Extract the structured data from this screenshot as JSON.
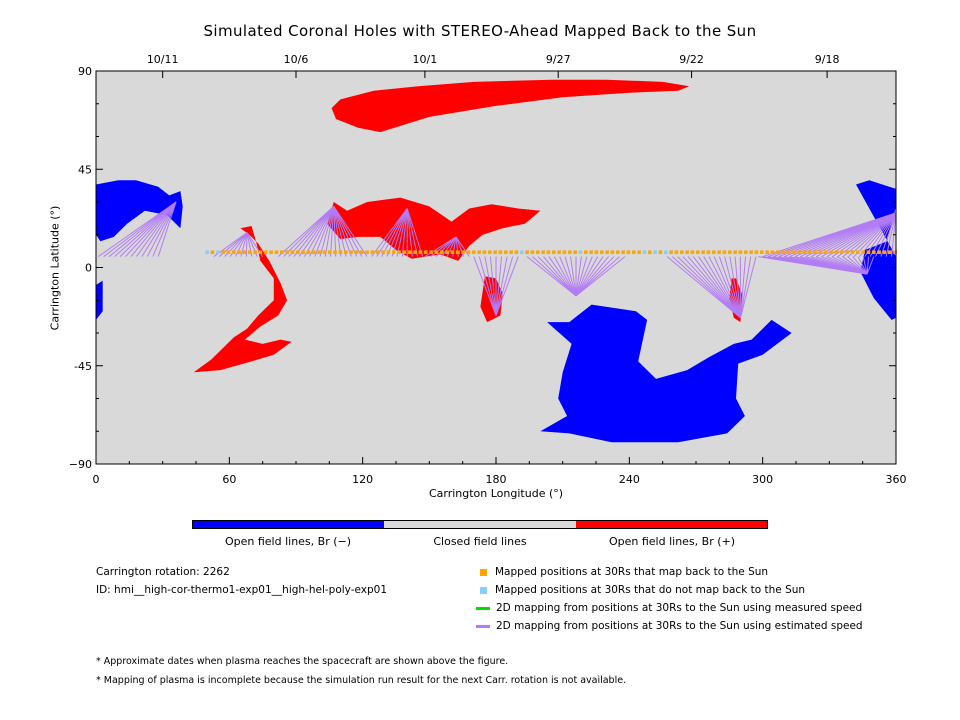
{
  "title": "Simulated Coronal Holes with STEREO-Ahead Mapped Back to the Sun",
  "colors": {
    "background": "#d9d9d9",
    "negative": "#0000ff",
    "positive": "#ff0000",
    "mapped": "#ffa500",
    "not_mapped": "#87cefa",
    "measured": "#00dd00",
    "estimated": "#b27cf5"
  },
  "colorbar": {
    "labels": [
      "Open field lines, Br (−)",
      "Closed field lines",
      "Open field lines, Br (+)"
    ]
  },
  "info": {
    "rotation": "Carrington rotation: 2262",
    "id": "ID: hmi__high-cor-thermo1-exp01__high-hel-poly-exp01"
  },
  "legend": {
    "mapped": "Mapped positions at 30Rs that map back to the Sun",
    "not_mapped": "Mapped positions at 30Rs that do not map back to the Sun",
    "measured": "2D mapping from positions at 30Rs to the Sun using measured speed",
    "estimated": "2D mapping from positions at 30Rs to the Sun using estimated speed"
  },
  "notes": [
    "* Approximate dates when plasma reaches the spacecraft are shown above the figure.",
    "* Mapping of plasma is incomplete because the simulation run result for the next Carr. rotation is not available."
  ],
  "chart_data": {
    "type": "scatter",
    "xlabel": "Carrington Longitude (°)",
    "ylabel": "Carrington Latitude (°)",
    "xlim": [
      0,
      360
    ],
    "ylim": [
      -90,
      90
    ],
    "x_ticks": [
      0,
      60,
      120,
      180,
      240,
      300,
      360
    ],
    "y_ticks": [
      90,
      45,
      0,
      -45,
      -90
    ],
    "y_tick_labels": [
      "90",
      "45",
      "0",
      "-45",
      "−90"
    ],
    "top_axis": {
      "dates": [
        {
          "label": "10/11",
          "lon": 30
        },
        {
          "label": "10/6",
          "lon": 90
        },
        {
          "label": "10/1",
          "lon": 148
        },
        {
          "label": "9/27",
          "lon": 208
        },
        {
          "label": "9/22",
          "lon": 268
        },
        {
          "label": "9/18",
          "lon": 329
        }
      ]
    },
    "coronal_holes": [
      {
        "polarity": "positive",
        "points": [
          [
            110,
            77
          ],
          [
            125,
            81
          ],
          [
            145,
            83
          ],
          [
            170,
            85
          ],
          [
            205,
            86
          ],
          [
            230,
            86
          ],
          [
            255,
            85
          ],
          [
            267,
            83
          ],
          [
            262,
            81
          ],
          [
            240,
            80
          ],
          [
            210,
            78
          ],
          [
            180,
            74
          ],
          [
            150,
            69
          ],
          [
            128,
            62
          ],
          [
            118,
            64
          ],
          [
            108,
            68
          ],
          [
            106,
            73
          ]
        ]
      },
      {
        "polarity": "positive",
        "points": [
          [
            104,
            20
          ],
          [
            107,
            30
          ],
          [
            113,
            26
          ],
          [
            122,
            30
          ],
          [
            137,
            32
          ],
          [
            150,
            28
          ],
          [
            160,
            21
          ],
          [
            168,
            27
          ],
          [
            178,
            29
          ],
          [
            190,
            27
          ],
          [
            200,
            26
          ],
          [
            193,
            20
          ],
          [
            183,
            18
          ],
          [
            174,
            15
          ],
          [
            168,
            10
          ],
          [
            163,
            3
          ],
          [
            155,
            6
          ],
          [
            142,
            4
          ],
          [
            135,
            8
          ],
          [
            128,
            14
          ],
          [
            118,
            14
          ],
          [
            110,
            13
          ]
        ]
      },
      {
        "polarity": "positive",
        "points": [
          [
            175,
            -4
          ],
          [
            180,
            -5
          ],
          [
            183,
            -12
          ],
          [
            182,
            -22
          ],
          [
            176,
            -25
          ],
          [
            173,
            -18
          ]
        ]
      },
      {
        "polarity": "positive",
        "points": [
          [
            65,
            18
          ],
          [
            70,
            19
          ],
          [
            72,
            12
          ],
          [
            74,
            3
          ],
          [
            80,
            -5
          ],
          [
            80,
            -15
          ],
          [
            73,
            -22
          ],
          [
            68,
            -28
          ],
          [
            62,
            -32
          ],
          [
            58,
            -36
          ],
          [
            52,
            -42
          ],
          [
            44,
            -48
          ],
          [
            56,
            -47
          ],
          [
            70,
            -43
          ],
          [
            80,
            -40
          ],
          [
            88,
            -34
          ],
          [
            83,
            -33
          ],
          [
            75,
            -35
          ],
          [
            67,
            -33
          ],
          [
            74,
            -27
          ],
          [
            82,
            -22
          ],
          [
            86,
            -15
          ],
          [
            83,
            -7
          ],
          [
            78,
            3
          ],
          [
            73,
            11
          ],
          [
            69,
            15
          ]
        ]
      },
      {
        "polarity": "positive",
        "points": [
          [
            286,
            -5
          ],
          [
            288,
            -5
          ],
          [
            291,
            -13
          ],
          [
            290,
            -25
          ],
          [
            287,
            -23
          ],
          [
            285,
            -14
          ]
        ]
      },
      {
        "polarity": "negative",
        "points": [
          [
            0,
            38
          ],
          [
            10,
            40
          ],
          [
            18,
            40
          ],
          [
            28,
            37
          ],
          [
            33,
            33
          ],
          [
            38,
            35
          ],
          [
            39,
            28
          ],
          [
            38,
            18
          ],
          [
            32,
            24
          ],
          [
            22,
            26
          ],
          [
            14,
            20
          ],
          [
            8,
            14
          ],
          [
            2,
            12
          ],
          [
            0,
            15
          ]
        ]
      },
      {
        "polarity": "negative",
        "points": [
          [
            0,
            -8
          ],
          [
            3,
            -6
          ],
          [
            3,
            -20
          ],
          [
            0,
            -24
          ]
        ]
      },
      {
        "polarity": "negative",
        "points": [
          [
            203,
            -25
          ],
          [
            213,
            -25
          ],
          [
            223,
            -17
          ],
          [
            243,
            -20
          ],
          [
            248,
            -24
          ],
          [
            244,
            -43
          ],
          [
            252,
            -51
          ],
          [
            266,
            -47
          ],
          [
            276,
            -41
          ],
          [
            287,
            -35
          ],
          [
            295,
            -33
          ],
          [
            304,
            -24
          ],
          [
            313,
            -30
          ],
          [
            300,
            -40
          ],
          [
            289,
            -44
          ],
          [
            288,
            -60
          ],
          [
            292,
            -68
          ],
          [
            284,
            -76
          ],
          [
            262,
            -80
          ],
          [
            232,
            -80
          ],
          [
            213,
            -76
          ],
          [
            200,
            -75
          ],
          [
            212,
            -68
          ],
          [
            208,
            -60
          ],
          [
            210,
            -48
          ],
          [
            214,
            -35
          ]
        ]
      },
      {
        "polarity": "negative",
        "points": [
          [
            342,
            38
          ],
          [
            348,
            40
          ],
          [
            360,
            36
          ],
          [
            360,
            28
          ],
          [
            356,
            12
          ],
          [
            346,
            8
          ],
          [
            344,
            -2
          ],
          [
            350,
            -14
          ],
          [
            358,
            -24
          ],
          [
            360,
            -23
          ],
          [
            360,
            5
          ]
        ]
      }
    ],
    "field_lines": [
      {
        "speed": "estimated",
        "from_lon": [
          1,
          28
        ],
        "from_lat": 5,
        "to": [
          36,
          30
        ]
      },
      {
        "speed": "estimated",
        "from_lon": [
          53,
          75
        ],
        "from_lat": 5,
        "to": [
          68,
          16
        ]
      },
      {
        "speed": "estimated",
        "from_lon": [
          82,
          122
        ],
        "from_lat": 5,
        "to": [
          107,
          28
        ]
      },
      {
        "speed": "estimated",
        "from_lon": [
          124,
          147
        ],
        "from_lat": 5,
        "to": [
          140,
          27
        ]
      },
      {
        "speed": "estimated",
        "from_lon": [
          148,
          168
        ],
        "from_lat": 5,
        "to": [
          162,
          14
        ]
      },
      {
        "speed": "estimated",
        "from_lon": [
          170,
          190
        ],
        "from_lat": 5,
        "to": [
          180,
          -22
        ]
      },
      {
        "speed": "estimated",
        "from_lon": [
          194,
          238
        ],
        "from_lat": 5,
        "to": [
          216,
          -13
        ]
      },
      {
        "speed": "estimated",
        "from_lon": [
          257,
          297
        ],
        "from_lat": 5,
        "to": [
          290,
          -23
        ]
      },
      {
        "speed": "estimated",
        "from_lon": [
          300,
          358
        ],
        "from_lat": 5,
        "to": [
          360,
          25
        ]
      },
      {
        "speed": "estimated",
        "from_lon": [
          298,
          350
        ],
        "from_lat": 5,
        "to": [
          347,
          -3
        ]
      }
    ],
    "mapped_points": {
      "lat": 7,
      "lon_start": 50,
      "lon_end": 360,
      "step": 2.4
    },
    "not_mapped_lons": [
      50,
      54,
      191,
      218,
      248,
      252,
      256
    ]
  }
}
